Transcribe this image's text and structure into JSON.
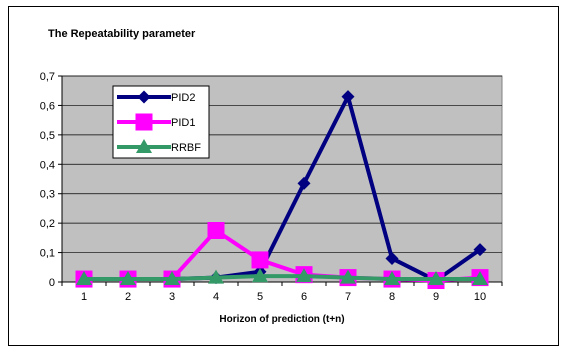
{
  "chart_data": {
    "type": "line",
    "title": "The Repeatability parameter",
    "xlabel": "Horizon of prediction (t+n)",
    "ylabel": "",
    "categories": [
      "1",
      "2",
      "3",
      "4",
      "5",
      "6",
      "7",
      "8",
      "9",
      "10"
    ],
    "ylim": [
      0,
      0.7
    ],
    "yticks": [
      "0",
      "0,1",
      "0,2",
      "0,3",
      "0,4",
      "0,5",
      "0,6",
      "0,7"
    ],
    "grid": true,
    "legend": "inside-top-left",
    "series": [
      {
        "name": "PID2",
        "color": "#000080",
        "marker": "diamond",
        "values": [
          0.01,
          0.01,
          0.01,
          0.015,
          0.035,
          0.335,
          0.63,
          0.08,
          0.005,
          0.11
        ]
      },
      {
        "name": "PID1",
        "color": "#ff00ff",
        "marker": "square",
        "values": [
          0.01,
          0.01,
          0.01,
          0.175,
          0.075,
          0.025,
          0.015,
          0.01,
          0.005,
          0.015
        ]
      },
      {
        "name": "RRBF",
        "color": "#339966",
        "marker": "triangle",
        "values": [
          0.01,
          0.01,
          0.01,
          0.015,
          0.02,
          0.02,
          0.015,
          0.01,
          0.01,
          0.01
        ]
      }
    ],
    "plot_background": "#c0c0c0"
  }
}
